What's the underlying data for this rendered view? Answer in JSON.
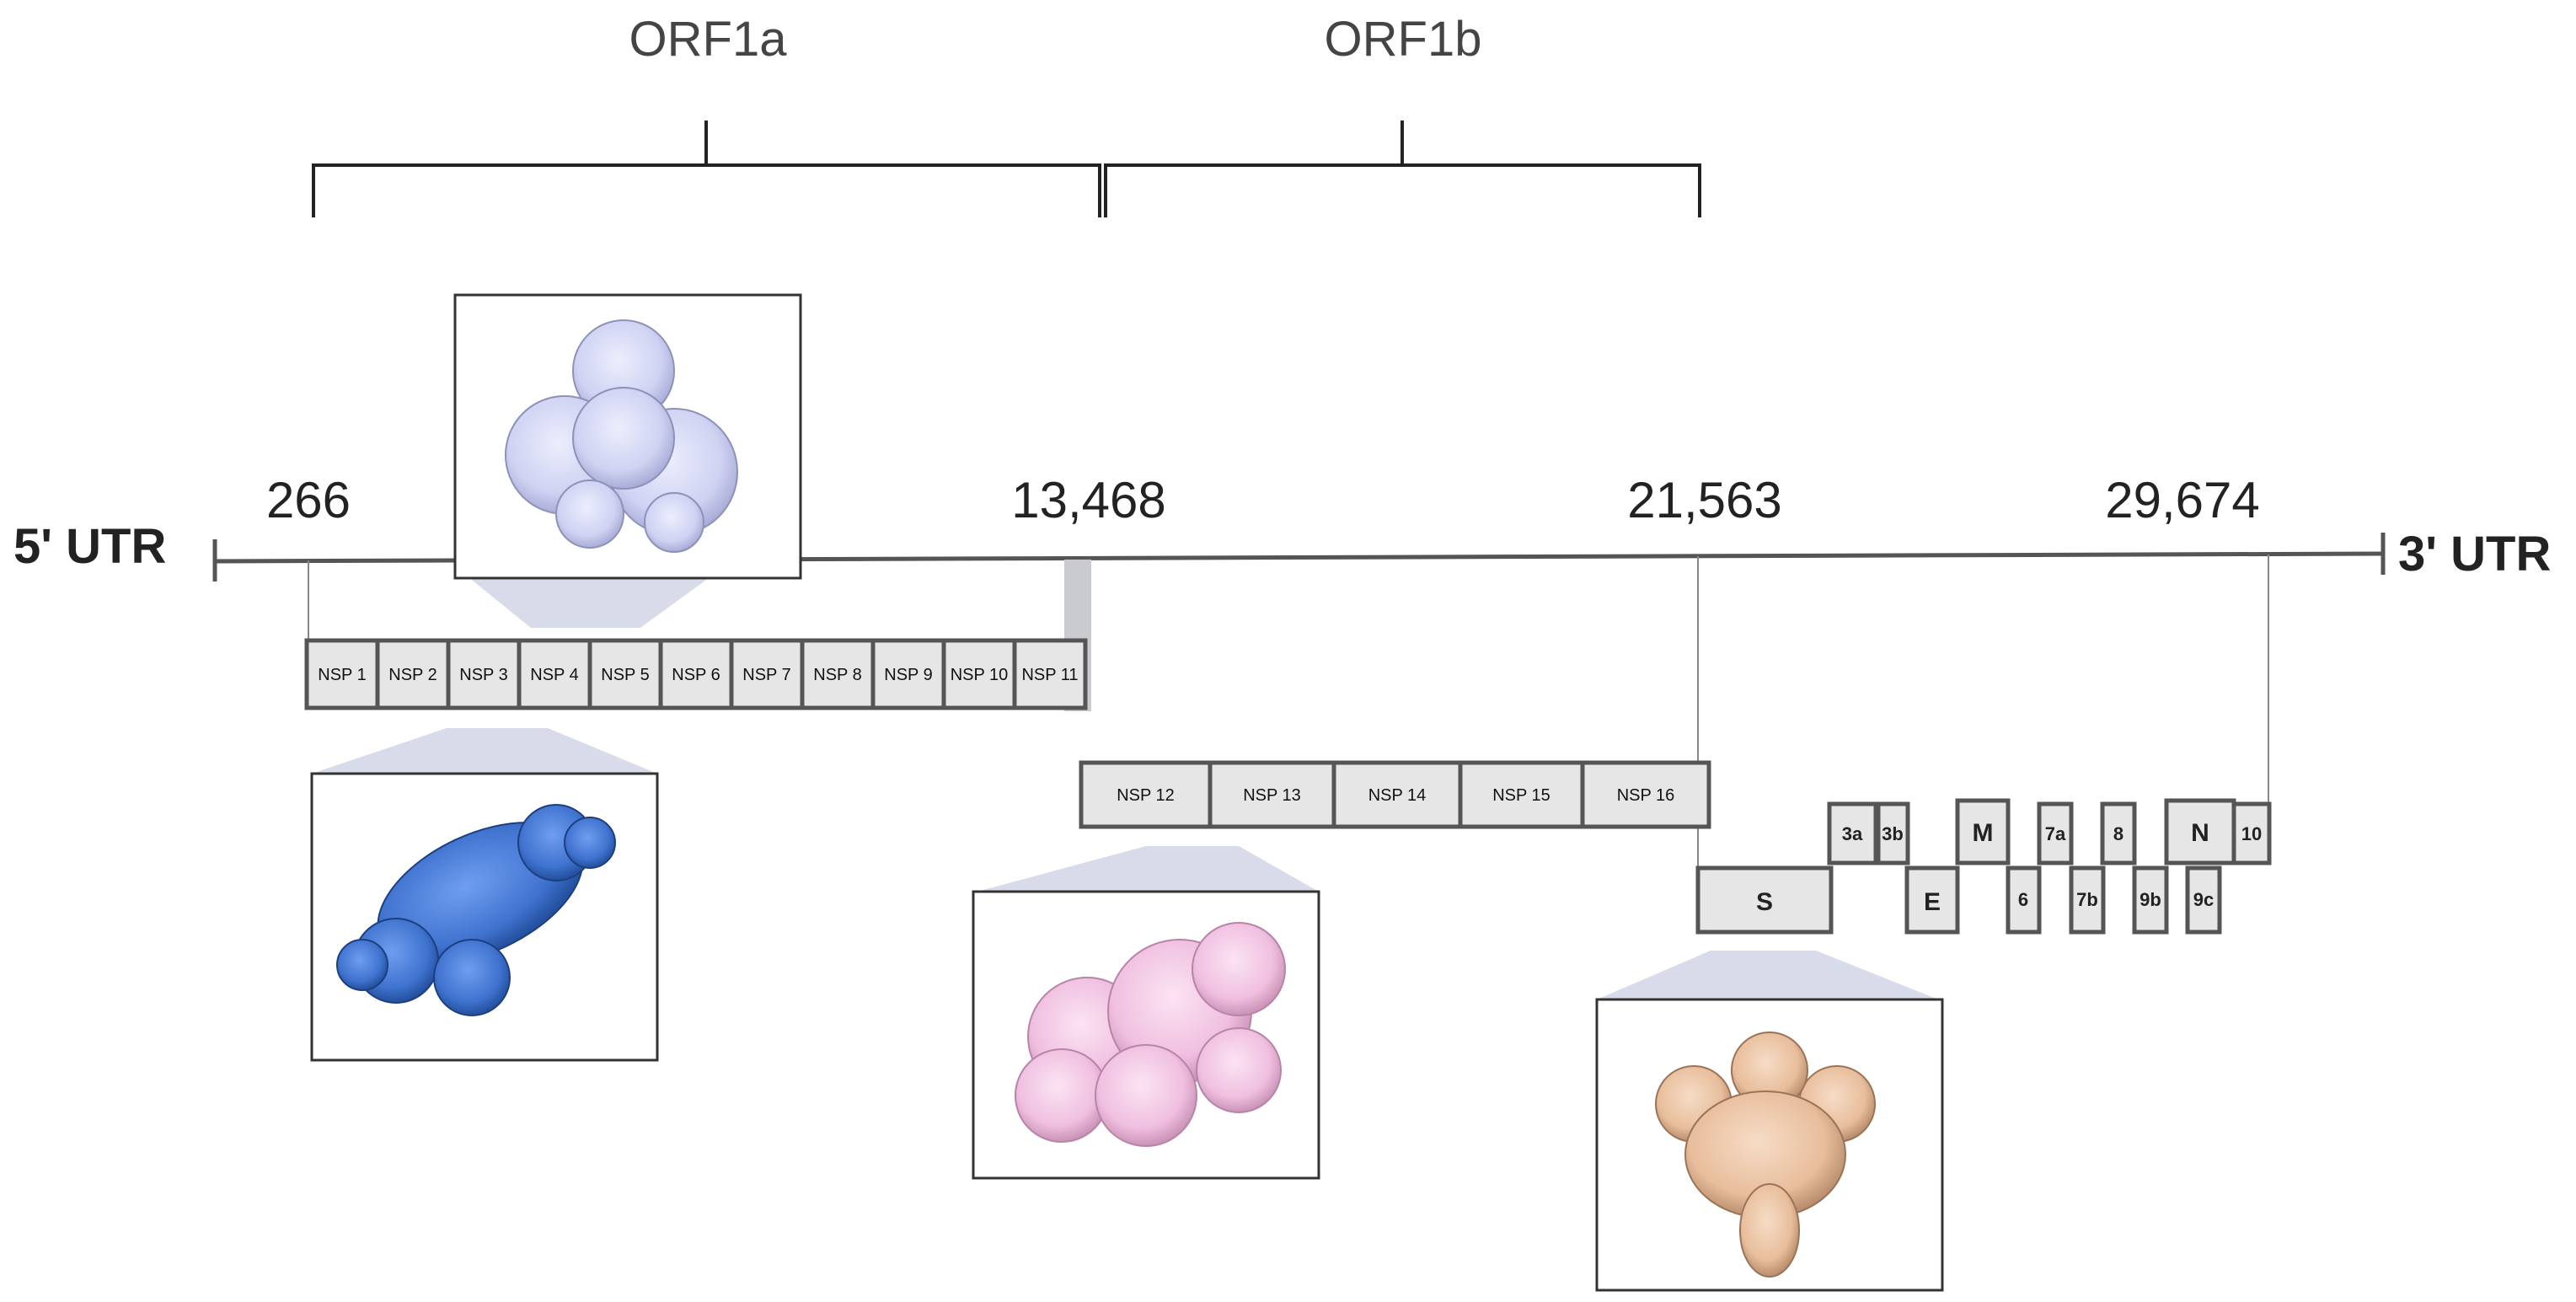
{
  "orf": {
    "orf1a": "ORF1a",
    "orf1b": "ORF1b"
  },
  "positions": {
    "p266": "266",
    "p13468": "13,468",
    "p21563": "21,563",
    "p29674": "29,674"
  },
  "utr": {
    "five": "5' UTR",
    "three": "3' UTR"
  },
  "nsp_row1": [
    "NSP 1",
    "NSP 2",
    "NSP 3",
    "NSP 4",
    "NSP 5",
    "NSP 6",
    "NSP 7",
    "NSP 8",
    "NSP 9",
    "NSP 10",
    "NSP 11"
  ],
  "nsp_row2": [
    "NSP 12",
    "NSP 13",
    "NSP 14",
    "NSP 15",
    "NSP 16"
  ],
  "genes": {
    "s": "S",
    "e": "E",
    "m": "M",
    "n": "N",
    "g3a": "3a",
    "g3b": "3b",
    "g6": "6",
    "g7a": "7a",
    "g7b": "7b",
    "g8": "8",
    "g9b": "9b",
    "g9c": "9c",
    "g10": "10"
  },
  "colors": {
    "protein_lavender": "#d5d7f5",
    "protein_blue": "#4a7fd6",
    "protein_pink": "#f2c4e2",
    "protein_peach": "#ebc3a3",
    "box_fill": "#e6e6e6",
    "box_stroke": "#555555"
  }
}
